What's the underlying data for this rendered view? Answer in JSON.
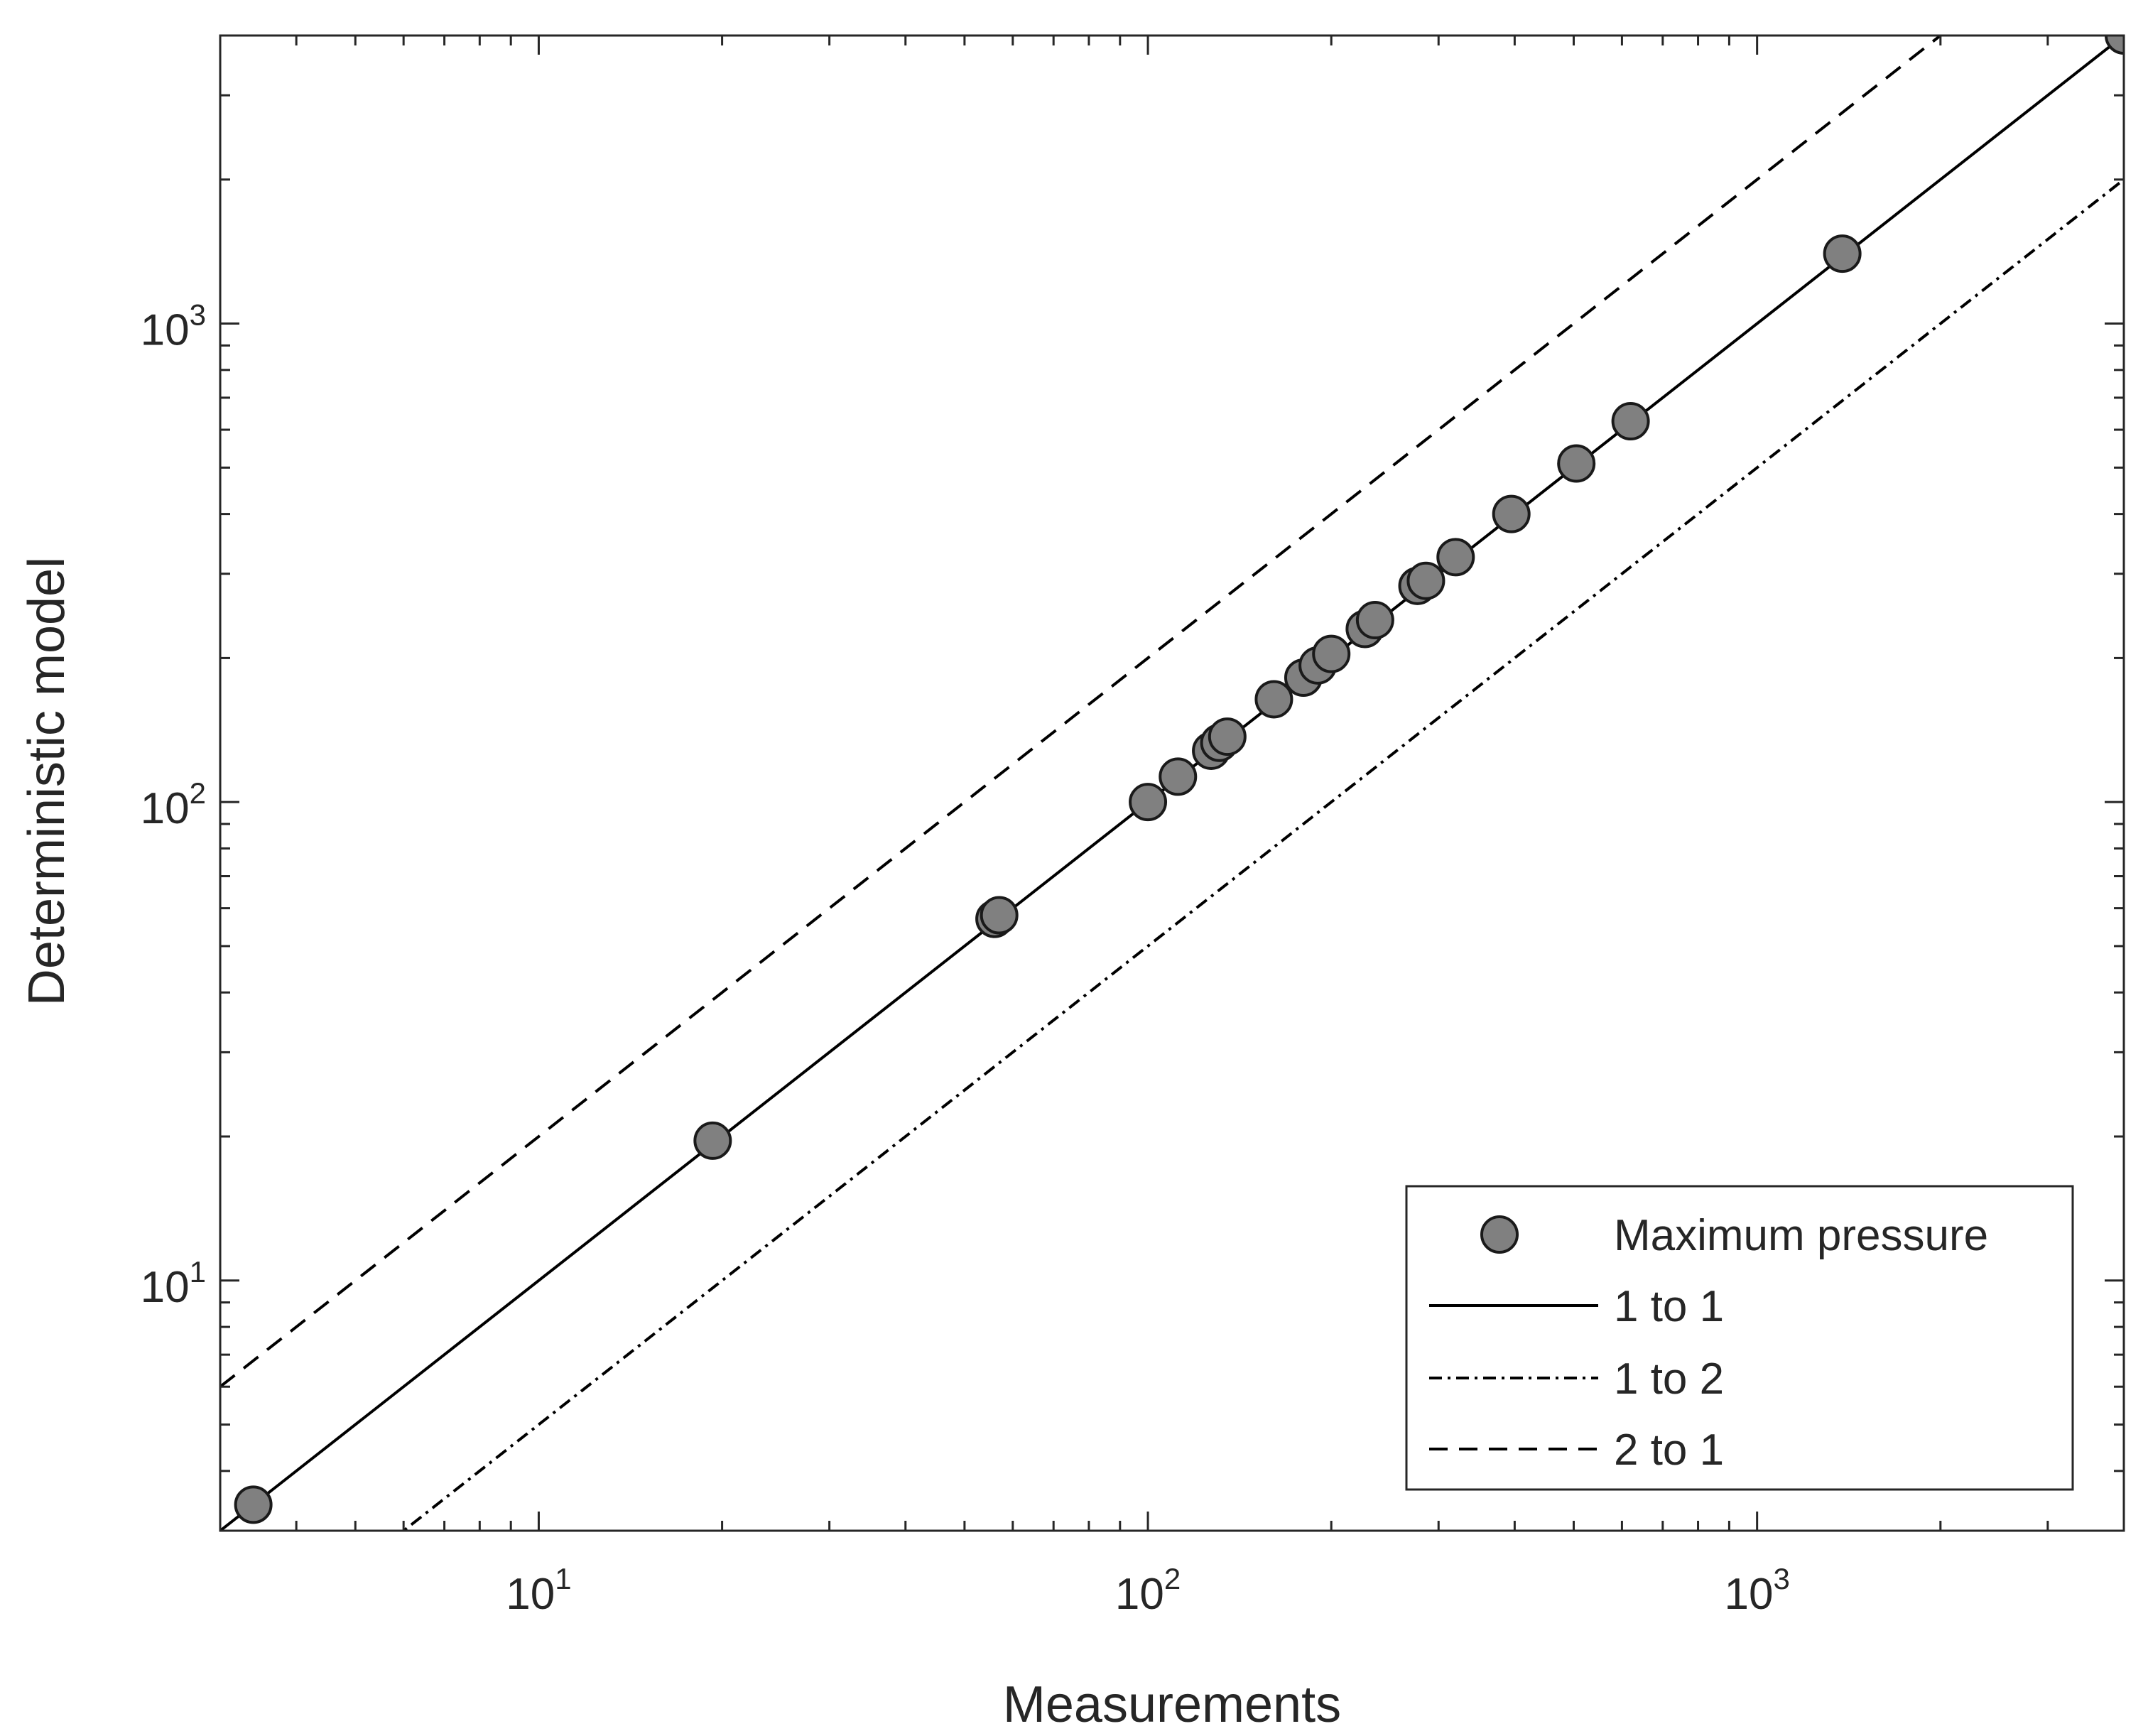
{
  "chart_data": {
    "type": "scatter",
    "xlabel": "Measurements",
    "ylabel": "Deterministic model",
    "xscale": "log",
    "yscale": "log",
    "xlim": [
      3,
      4000
    ],
    "ylim": [
      3,
      4000
    ],
    "grid": false,
    "legend_position": "bottom-right",
    "xticks": [
      {
        "base": "10",
        "exp": "1",
        "value": 10
      },
      {
        "base": "10",
        "exp": "2",
        "value": 100
      },
      {
        "base": "10",
        "exp": "3",
        "value": 1000
      }
    ],
    "yticks": [
      {
        "base": "10",
        "exp": "1",
        "value": 10
      },
      {
        "base": "10",
        "exp": "2",
        "value": 100
      },
      {
        "base": "10",
        "exp": "3",
        "value": 1000
      }
    ],
    "series": [
      {
        "name": "Maximum pressure",
        "kind": "scatter",
        "marker_color": "#808080",
        "edge_color": "#1a1a1a",
        "points": [
          {
            "x": 3.4,
            "y": 3.4
          },
          {
            "x": 19.3,
            "y": 19.6
          },
          {
            "x": 56,
            "y": 57
          },
          {
            "x": 57,
            "y": 58
          },
          {
            "x": 100,
            "y": 100
          },
          {
            "x": 112,
            "y": 113
          },
          {
            "x": 127,
            "y": 128
          },
          {
            "x": 131,
            "y": 133
          },
          {
            "x": 135,
            "y": 137
          },
          {
            "x": 161,
            "y": 164
          },
          {
            "x": 180,
            "y": 182
          },
          {
            "x": 190,
            "y": 193
          },
          {
            "x": 200,
            "y": 204
          },
          {
            "x": 227,
            "y": 230
          },
          {
            "x": 236,
            "y": 240
          },
          {
            "x": 277,
            "y": 283
          },
          {
            "x": 286,
            "y": 290
          },
          {
            "x": 320,
            "y": 325
          },
          {
            "x": 395,
            "y": 400
          },
          {
            "x": 505,
            "y": 510
          },
          {
            "x": 620,
            "y": 625
          },
          {
            "x": 1380,
            "y": 1400
          },
          {
            "x": 4000,
            "y": 4000
          }
        ]
      },
      {
        "name": "1 to 1",
        "kind": "line",
        "slope": 1,
        "dash": "solid"
      },
      {
        "name": "1 to 2",
        "kind": "line",
        "slope": 0.5,
        "dash": "dashdot"
      },
      {
        "name": "2 to 1",
        "kind": "line",
        "slope": 2,
        "dash": "dashed"
      }
    ]
  }
}
